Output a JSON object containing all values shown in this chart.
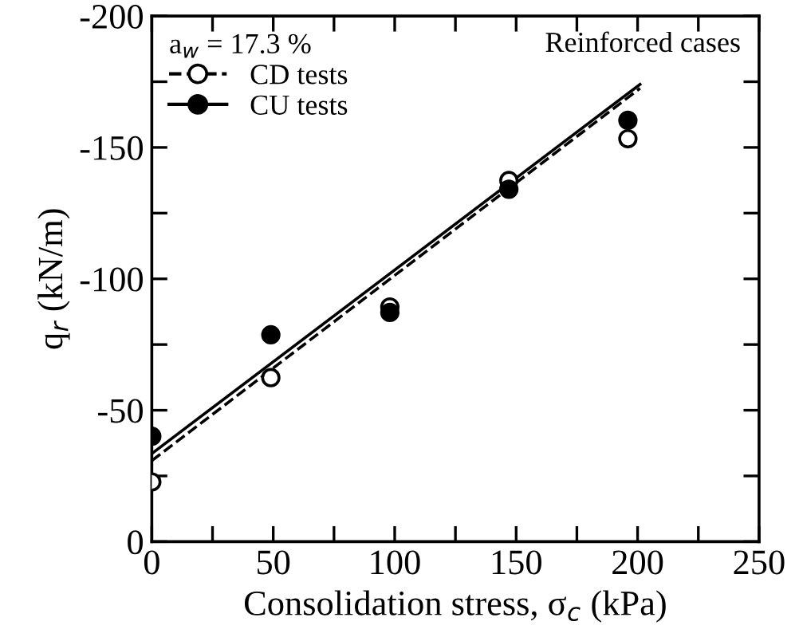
{
  "chart_data": {
    "type": "scatter",
    "xlabel": "Consolidation stress, σ$_{c}$ (kPa)",
    "ylabel": "q$_{r}$ (kN/m)",
    "legend_title": "a$_{w}$ = 17.3 %",
    "legend": "top left",
    "grid": false,
    "annotations": [
      "Reinforced cases"
    ],
    "series": [
      {
        "name": "CD tests",
        "marker": "circle",
        "color": "#ffffff",
        "x": [
          0,
          49,
          98,
          147,
          196
        ],
        "values": [
          -22.7,
          -62.4,
          -89.3,
          -137.4,
          -153.3
        ]
      },
      {
        "type": "line",
        "color": "#000000",
        "line_style": "dashed",
        "x": [
          0,
          201
        ],
        "values": [
          -30.8,
          -172.5
        ]
      },
      {
        "name": "CU tests",
        "marker": "circle",
        "color": "#000000",
        "x": [
          0,
          49,
          98,
          147,
          196
        ],
        "values": [
          -40.1,
          -78.7,
          -87.2,
          -134.1,
          -160.3
        ]
      },
      {
        "type": "line",
        "color": "#000000",
        "line_style": "solid",
        "x": [
          0,
          201
        ],
        "values": [
          -33.5,
          -174
        ]
      }
    ],
    "xlim": [
      0,
      250
    ],
    "ylim": [
      0,
      -200
    ],
    "xticks": [
      0,
      {
        "value": 25,
        "label": null
      },
      50,
      {
        "value": 75,
        "label": null
      },
      100,
      {
        "value": 125,
        "label": null
      },
      150,
      {
        "value": 175,
        "label": null
      },
      200,
      {
        "value": 225,
        "label": null
      },
      250
    ],
    "yticks": [
      0,
      {
        "value": -25,
        "label": null
      },
      -50,
      {
        "value": -75,
        "label": null
      },
      -100,
      {
        "value": -125,
        "label": null
      },
      -150,
      {
        "value": -175,
        "label": null
      },
      -200
    ]
  }
}
